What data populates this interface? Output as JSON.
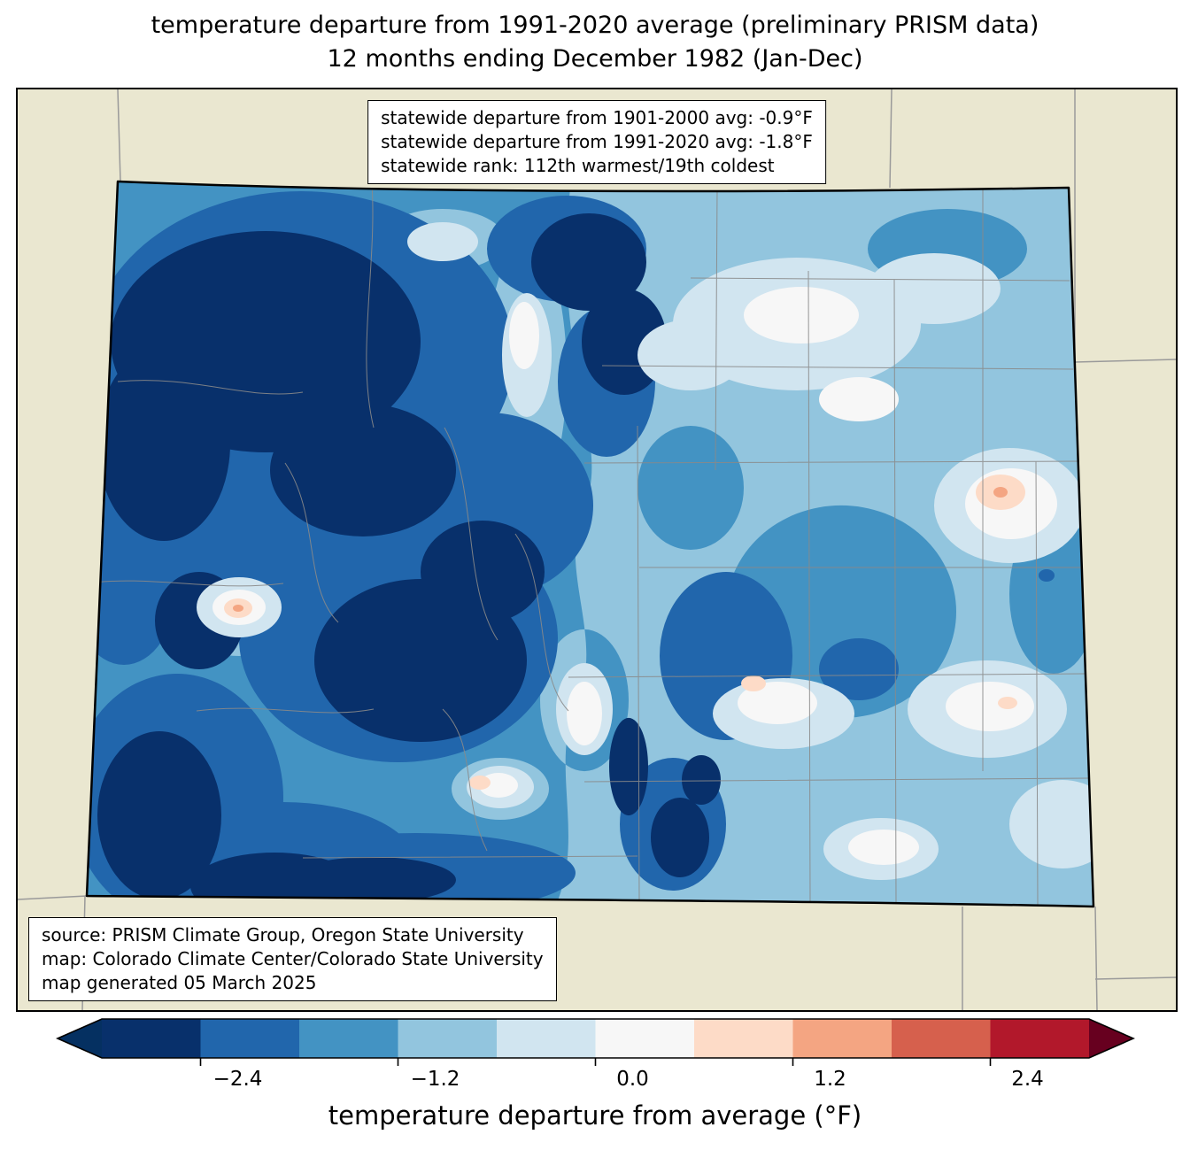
{
  "title": {
    "line1": "temperature departure from 1991-2020 average (preliminary PRISM data)",
    "line2": "12 months ending December 1982 (Jan-Dec)"
  },
  "map": {
    "background": "#eae7d0",
    "state_border": "#000000",
    "neighbor_line": "#9a9a9a",
    "county_line": "#8a8a8a",
    "stats_box": {
      "lines": [
        "statewide departure from 1901-2000 avg: -0.9°F",
        "statewide departure from 1991-2020 avg: -1.8°F",
        "statewide rank: 112th warmest/19th coldest"
      ]
    },
    "source_box": {
      "lines": [
        "source: PRISM Climate Group, Oregon State University",
        "map: Colorado Climate Center/Colorado State University",
        "map generated 05 March 2025"
      ]
    },
    "stats": {
      "departure_1901_2000_F": -0.9,
      "departure_1991_2020_F": -1.8,
      "rank_warmest": 112,
      "rank_coldest": 19
    }
  },
  "colorbar": {
    "label": "temperature departure from average (°F)",
    "ticks": [
      "−2.4",
      "−1.2",
      "0.0",
      "1.2",
      "2.4"
    ],
    "tick_step": 1.2,
    "segment_step": 0.6,
    "range": [
      -3.0,
      3.0
    ],
    "segments": [
      "#08306b",
      "#2166ac",
      "#4393c3",
      "#92c5de",
      "#d1e5f0",
      "#f7f7f7",
      "#fddbc7",
      "#f4a582",
      "#d6604d",
      "#b2182b"
    ],
    "arrow_left": "#053061",
    "arrow_right": "#67001f"
  }
}
